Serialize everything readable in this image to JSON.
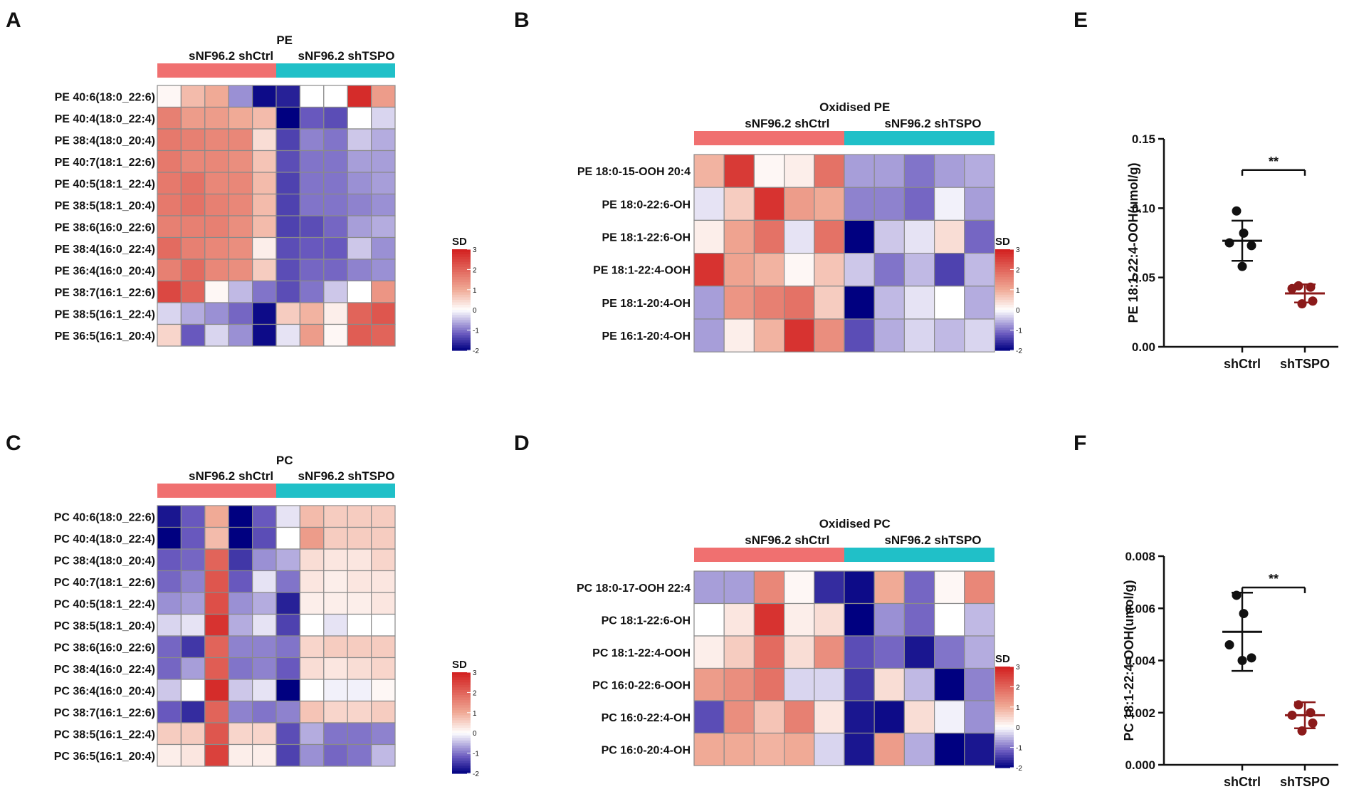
{
  "chart_data": [
    {
      "panel": "A",
      "type": "heatmap",
      "title": "PE",
      "groups": [
        "sNF96.2 shCtrl",
        "sNF96.2 shTSPO"
      ],
      "group_colors": [
        "#f07070",
        "#20c0c8"
      ],
      "rows": [
        "PE 40:6(18:0_22:6)",
        "PE 40:4(18:0_22:4)",
        "PE 38:4(18:0_20:4)",
        "PE 40:7(18:1_22:6)",
        "PE 40:5(18:1_22:4)",
        "PE 38:5(18:1_20:4)",
        "PE 38:6(16:0_22:6)",
        "PE 38:4(16:0_22:4)",
        "PE 36:4(16:0_20:4)",
        "PE 38:7(16:1_22:6)",
        "PE 38:5(16:1_22:4)",
        "PE 36:5(16:1_20:4)"
      ],
      "values": [
        [
          0.1,
          0.8,
          1.0,
          -0.8,
          -1.9,
          -1.7,
          0.0,
          0.0,
          2.8,
          1.2
        ],
        [
          1.6,
          1.2,
          1.2,
          1.0,
          0.8,
          -2.0,
          -1.2,
          -1.3,
          0.0,
          -0.3
        ],
        [
          1.7,
          1.6,
          1.5,
          1.5,
          0.4,
          -1.4,
          -0.9,
          -1.0,
          -0.4,
          -0.6
        ],
        [
          1.7,
          1.5,
          1.5,
          1.4,
          0.7,
          -1.3,
          -1.0,
          -1.0,
          -0.7,
          -0.7
        ],
        [
          1.7,
          1.8,
          1.5,
          1.5,
          0.8,
          -1.4,
          -1.0,
          -1.0,
          -0.8,
          -0.7
        ],
        [
          1.7,
          1.8,
          1.6,
          1.5,
          0.8,
          -1.4,
          -1.0,
          -1.0,
          -0.9,
          -0.8
        ],
        [
          1.6,
          1.6,
          1.6,
          1.4,
          0.8,
          -1.4,
          -1.3,
          -1.1,
          -0.7,
          -0.6
        ],
        [
          1.9,
          1.6,
          1.5,
          1.4,
          0.2,
          -1.3,
          -1.2,
          -1.2,
          -0.4,
          -0.8
        ],
        [
          1.6,
          1.9,
          1.5,
          1.4,
          0.6,
          -1.3,
          -1.1,
          -1.1,
          -0.9,
          -0.8
        ],
        [
          2.4,
          2.0,
          0.1,
          -0.5,
          -1.0,
          -1.3,
          -1.0,
          -0.4,
          0.0,
          1.3
        ],
        [
          -0.3,
          -0.6,
          -0.8,
          -1.1,
          -1.9,
          0.6,
          0.9,
          0.2,
          2.0,
          2.2
        ],
        [
          0.5,
          -1.2,
          -0.3,
          -0.8,
          -1.9,
          -0.2,
          1.2,
          0.1,
          2.1,
          2.0
        ]
      ],
      "colorbar": {
        "title": "SD",
        "ticks": [
          "3",
          "2",
          "1",
          "0",
          "-1",
          "-2"
        ],
        "range": [
          -2,
          3
        ]
      }
    },
    {
      "panel": "B",
      "type": "heatmap",
      "title": "Oxidised PE",
      "groups": [
        "sNF96.2 shCtrl",
        "sNF96.2 shTSPO"
      ],
      "group_colors": [
        "#f07070",
        "#20c0c8"
      ],
      "rows": [
        "PE 18:0-15-OOH 20:4",
        "PE 18:0-22:6-OH",
        "PE 18:1-22:6-OH",
        "PE 18:1-22:4-OOH",
        "PE 18:1-20:4-OH",
        "PE 16:1-20:4-OH"
      ],
      "values": [
        [
          0.9,
          2.6,
          0.1,
          0.2,
          1.8,
          -0.7,
          -0.7,
          -1.0,
          -0.7,
          -0.6
        ],
        [
          -0.2,
          0.6,
          2.7,
          1.2,
          1.0,
          -0.9,
          -0.9,
          -1.1,
          -0.1,
          -0.7
        ],
        [
          0.2,
          1.1,
          1.8,
          -0.2,
          1.8,
          -2.0,
          -0.4,
          -0.2,
          0.4,
          -1.1
        ],
        [
          2.7,
          1.1,
          0.9,
          0.1,
          0.7,
          -0.4,
          -1.0,
          -0.5,
          -1.4,
          -0.5
        ],
        [
          -0.7,
          1.3,
          1.6,
          1.8,
          0.6,
          -2.0,
          -0.5,
          -0.2,
          0.0,
          -0.6
        ],
        [
          -0.7,
          0.2,
          0.9,
          2.7,
          1.4,
          -1.3,
          -0.6,
          -0.3,
          -0.5,
          -0.3
        ]
      ],
      "colorbar": {
        "title": "SD",
        "ticks": [
          "3",
          "2",
          "1",
          "0",
          "-1",
          "-2"
        ],
        "range": [
          -2,
          3
        ]
      }
    },
    {
      "panel": "C",
      "type": "heatmap",
      "title": "PC",
      "groups": [
        "sNF96.2 shCtrl",
        "sNF96.2 shTSPO"
      ],
      "group_colors": [
        "#f07070",
        "#20c0c8"
      ],
      "rows": [
        "PC 40:6(18:0_22:6)",
        "PC 40:4(18:0_22:4)",
        "PC 38:4(18:0_20:4)",
        "PC 40:7(18:1_22:6)",
        "PC 40:5(18:1_22:4)",
        "PC 38:5(18:1_20:4)",
        "PC 38:6(16:0_22:6)",
        "PC 38:4(16:0_22:4)",
        "PC 36:4(16:0_20:4)",
        "PC 38:7(16:1_22:6)",
        "PC 38:5(16:1_22:4)",
        "PC 36:5(16:1_20:4)"
      ],
      "values": [
        [
          -1.8,
          -1.2,
          1.0,
          -2.0,
          -1.2,
          -0.2,
          0.8,
          0.6,
          0.6,
          0.6
        ],
        [
          -2.0,
          -1.2,
          0.8,
          -2.0,
          -1.3,
          0.0,
          1.2,
          0.6,
          0.6,
          0.6
        ],
        [
          -1.2,
          -1.1,
          2.0,
          -1.5,
          -0.8,
          -0.6,
          0.4,
          0.3,
          0.3,
          0.5
        ],
        [
          -1.1,
          -0.9,
          2.2,
          -1.2,
          -0.2,
          -1.0,
          0.3,
          0.2,
          0.3,
          0.3
        ],
        [
          -0.8,
          -0.7,
          2.3,
          -0.8,
          -0.6,
          -1.7,
          0.2,
          0.2,
          0.2,
          0.3
        ],
        [
          -0.3,
          -0.2,
          2.7,
          -0.6,
          -0.2,
          -1.4,
          0.0,
          -0.2,
          0.0,
          0.0
        ],
        [
          -1.1,
          -1.5,
          2.0,
          -0.9,
          -0.9,
          -1.0,
          0.5,
          0.6,
          0.6,
          0.6
        ],
        [
          -1.1,
          -0.7,
          2.1,
          -1.0,
          -0.9,
          -1.2,
          0.4,
          0.3,
          0.4,
          0.5
        ],
        [
          -0.4,
          0.0,
          2.8,
          -0.4,
          -0.2,
          -2.0,
          0.0,
          -0.1,
          -0.1,
          0.1
        ],
        [
          -1.2,
          -1.6,
          2.0,
          -0.9,
          -1.0,
          -0.9,
          0.7,
          0.5,
          0.5,
          0.6
        ],
        [
          0.6,
          0.6,
          2.2,
          0.5,
          0.5,
          -1.3,
          -0.6,
          -1.0,
          -1.0,
          -0.9
        ],
        [
          0.2,
          0.3,
          2.5,
          0.2,
          0.2,
          -1.4,
          -0.8,
          -1.1,
          -1.0,
          -0.5
        ]
      ],
      "colorbar": {
        "title": "SD",
        "ticks": [
          "3",
          "2",
          "1",
          "0",
          "-1",
          "-2"
        ],
        "range": [
          -2,
          3
        ]
      }
    },
    {
      "panel": "D",
      "type": "heatmap",
      "title": "Oxidised PC",
      "groups": [
        "sNF96.2 shCtrl",
        "sNF96.2 shTSPO"
      ],
      "group_colors": [
        "#f07070",
        "#20c0c8"
      ],
      "rows": [
        "PC 18:0-17-OOH 22:4",
        "PC 18:1-22:6-OH",
        "PC 18:1-22:4-OOH",
        "PC 16:0-22:6-OOH",
        "PC 16:0-22:4-OH",
        "PC 16:0-20:4-OH"
      ],
      "values": [
        [
          -0.7,
          -0.7,
          1.5,
          0.1,
          -1.6,
          -1.9,
          1.0,
          -1.1,
          0.1,
          1.5
        ],
        [
          0.0,
          0.3,
          2.7,
          0.2,
          0.4,
          -2.0,
          -0.8,
          -1.1,
          0.0,
          -0.5
        ],
        [
          0.2,
          0.6,
          1.9,
          0.4,
          1.4,
          -1.3,
          -1.1,
          -1.8,
          -1.0,
          -0.6
        ],
        [
          1.2,
          1.4,
          1.8,
          -0.3,
          -0.3,
          -1.5,
          0.4,
          -0.5,
          -2.0,
          -0.9
        ],
        [
          -1.3,
          1.4,
          0.7,
          1.6,
          0.3,
          -1.8,
          -1.9,
          0.4,
          -0.1,
          -0.8
        ],
        [
          1.0,
          1.0,
          0.9,
          1.0,
          -0.3,
          -1.8,
          1.2,
          -0.6,
          -2.0,
          -1.8
        ]
      ],
      "colorbar": {
        "title": "SD",
        "ticks": [
          "3",
          "2",
          "1",
          "0",
          "-1",
          "-2"
        ],
        "range": [
          -2,
          3
        ]
      }
    },
    {
      "panel": "E",
      "type": "scatter",
      "categories": [
        "shCtrl",
        "shTSPO"
      ],
      "series": [
        {
          "name": "shCtrl",
          "color": "#111111",
          "points": [
            0.098,
            0.082,
            0.075,
            0.073,
            0.058
          ],
          "mean": 0.0765,
          "sd": 0.0145
        },
        {
          "name": "shTSPO",
          "color": "#8b1a1a",
          "points": [
            0.044,
            0.043,
            0.042,
            0.033,
            0.031
          ],
          "mean": 0.0385,
          "sd": 0.0065
        }
      ],
      "ylabel": "PE 18:1-22:4-OOH(umol/g)",
      "ylim": [
        0,
        0.15
      ],
      "yticks": [
        "0.00",
        "0.05",
        "0.10",
        "0.15"
      ],
      "significance": "**"
    },
    {
      "panel": "F",
      "type": "scatter",
      "categories": [
        "shCtrl",
        "shTSPO"
      ],
      "series": [
        {
          "name": "shCtrl",
          "color": "#111111",
          "points": [
            0.0065,
            0.0058,
            0.0046,
            0.0041,
            0.004
          ],
          "mean": 0.0051,
          "sd": 0.0015
        },
        {
          "name": "shTSPO",
          "color": "#8b1a1a",
          "points": [
            0.0023,
            0.002,
            0.0019,
            0.0016,
            0.0013
          ],
          "mean": 0.0019,
          "sd": 0.0005
        }
      ],
      "ylabel": "PC 18:1-22:4-OOH(umol/g)",
      "ylim": [
        0,
        0.008
      ],
      "yticks": [
        "0.000",
        "0.002",
        "0.004",
        "0.006",
        "0.008"
      ],
      "significance": "**"
    }
  ]
}
